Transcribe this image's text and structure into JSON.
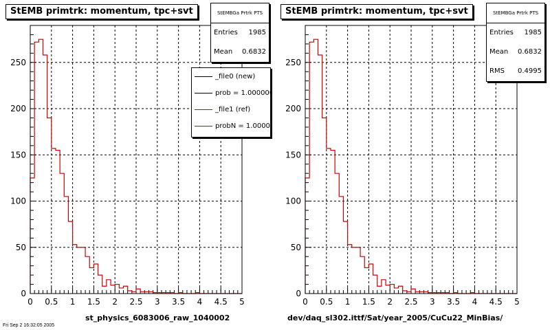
{
  "colors": {
    "frame": "#000000",
    "grid": "#000000",
    "ref_hist": "#cc0000",
    "new_hist": "#000000",
    "background": "#ffffff"
  },
  "pads": [
    {
      "title": "StEMB primtrk: momentum, tpc+svt",
      "stats": {
        "name": "StEMBGa Prtrk PTS",
        "rows": [
          {
            "label": "Entries",
            "value": "1985"
          },
          {
            "label": "Mean",
            "value": "0.6832"
          }
        ]
      },
      "legend": [
        {
          "label": "_file0 (new)",
          "color": "#000000"
        },
        {
          "label": "prob = 1.000000",
          "color": "#000000"
        },
        {
          "label": "_file1 (ref)",
          "color": "#cc0000"
        },
        {
          "label": "probN = 1.000000",
          "color": "#cc0000"
        }
      ],
      "xlabel": "st_physics_6083006_raw_1040002"
    },
    {
      "title": "StEMB primtrk: momentum, tpc+svt",
      "stats": {
        "name": "StEMBGa Prtrk PTS",
        "rows": [
          {
            "label": "Entries",
            "value": "1985"
          },
          {
            "label": "Mean",
            "value": "0.6832"
          },
          {
            "label": "RMS",
            "value": "0.4995"
          }
        ]
      },
      "legend": [],
      "xlabel": "dev/daq_sl302.ittf/Sat/year_2005/CuCu22_MinBias/"
    }
  ],
  "footer": "Fri Sep 2 16:32:05 2005",
  "chart_data": [
    {
      "type": "histogram",
      "title": "StEMB primtrk: momentum, tpc+svt",
      "xlabel": "st_physics_6083006_raw_1040002",
      "ylabel": "",
      "xlim": [
        0,
        5
      ],
      "ylim": [
        0,
        290
      ],
      "xticks": [
        "0",
        "0.5",
        "1",
        "1.5",
        "2",
        "2.5",
        "3",
        "3.5",
        "4",
        "4.5",
        "5"
      ],
      "yticks": [
        "0",
        "50",
        "100",
        "150",
        "200",
        "250"
      ],
      "grid": true,
      "bin_width": 0.1,
      "series": [
        {
          "name": "_file1 (ref)",
          "color": "#cc0000",
          "x": [
            0.05,
            0.15,
            0.25,
            0.35,
            0.45,
            0.55,
            0.65,
            0.75,
            0.85,
            0.95,
            1.05,
            1.15,
            1.25,
            1.35,
            1.45,
            1.55,
            1.65,
            1.75,
            1.85,
            1.95,
            2.05,
            2.15,
            2.25,
            2.35,
            2.45,
            2.55,
            2.65,
            2.75,
            2.85,
            2.95,
            3.05,
            3.15,
            3.25,
            3.35,
            3.45,
            3.55,
            3.65,
            3.75,
            3.85,
            3.95,
            4.05,
            4.15,
            4.25,
            4.35,
            4.45,
            4.55,
            4.65,
            4.75,
            4.85,
            4.95
          ],
          "values": [
            125,
            272,
            275,
            258,
            190,
            157,
            155,
            130,
            105,
            78,
            53,
            50,
            50,
            40,
            28,
            32,
            20,
            8,
            15,
            9,
            10,
            6,
            8,
            3,
            2,
            5,
            2,
            2,
            2,
            1,
            1,
            1,
            1,
            1,
            0,
            1,
            0,
            0,
            0,
            1,
            0,
            0,
            0,
            0,
            0,
            0,
            0,
            0,
            0,
            0
          ]
        }
      ]
    },
    {
      "type": "histogram",
      "title": "StEMB primtrk: momentum, tpc+svt",
      "xlabel": "dev/daq_sl302.ittf/Sat/year_2005/CuCu22_MinBias/",
      "ylabel": "",
      "xlim": [
        0,
        5
      ],
      "ylim": [
        0,
        290
      ],
      "xticks": [
        "0",
        "0.5",
        "1",
        "1.5",
        "2",
        "2.5",
        "3",
        "3.5",
        "4",
        "4.5",
        "5"
      ],
      "yticks": [
        "0",
        "50",
        "100",
        "150",
        "200",
        "250"
      ],
      "grid": true,
      "bin_width": 0.1,
      "series": [
        {
          "name": "_file1 (ref)",
          "color": "#cc0000",
          "x": [
            0.05,
            0.15,
            0.25,
            0.35,
            0.45,
            0.55,
            0.65,
            0.75,
            0.85,
            0.95,
            1.05,
            1.15,
            1.25,
            1.35,
            1.45,
            1.55,
            1.65,
            1.75,
            1.85,
            1.95,
            2.05,
            2.15,
            2.25,
            2.35,
            2.45,
            2.55,
            2.65,
            2.75,
            2.85,
            2.95,
            3.05,
            3.15,
            3.25,
            3.35,
            3.45,
            3.55,
            3.65,
            3.75,
            3.85,
            3.95,
            4.05,
            4.15,
            4.25,
            4.35,
            4.45,
            4.55,
            4.65,
            4.75,
            4.85,
            4.95
          ],
          "values": [
            125,
            272,
            275,
            258,
            190,
            157,
            155,
            130,
            105,
            78,
            53,
            50,
            50,
            40,
            28,
            32,
            20,
            8,
            15,
            9,
            10,
            6,
            8,
            3,
            2,
            5,
            2,
            2,
            2,
            1,
            1,
            1,
            1,
            1,
            0,
            1,
            0,
            0,
            0,
            1,
            0,
            0,
            0,
            0,
            0,
            0,
            0,
            0,
            0,
            0
          ]
        }
      ]
    }
  ]
}
